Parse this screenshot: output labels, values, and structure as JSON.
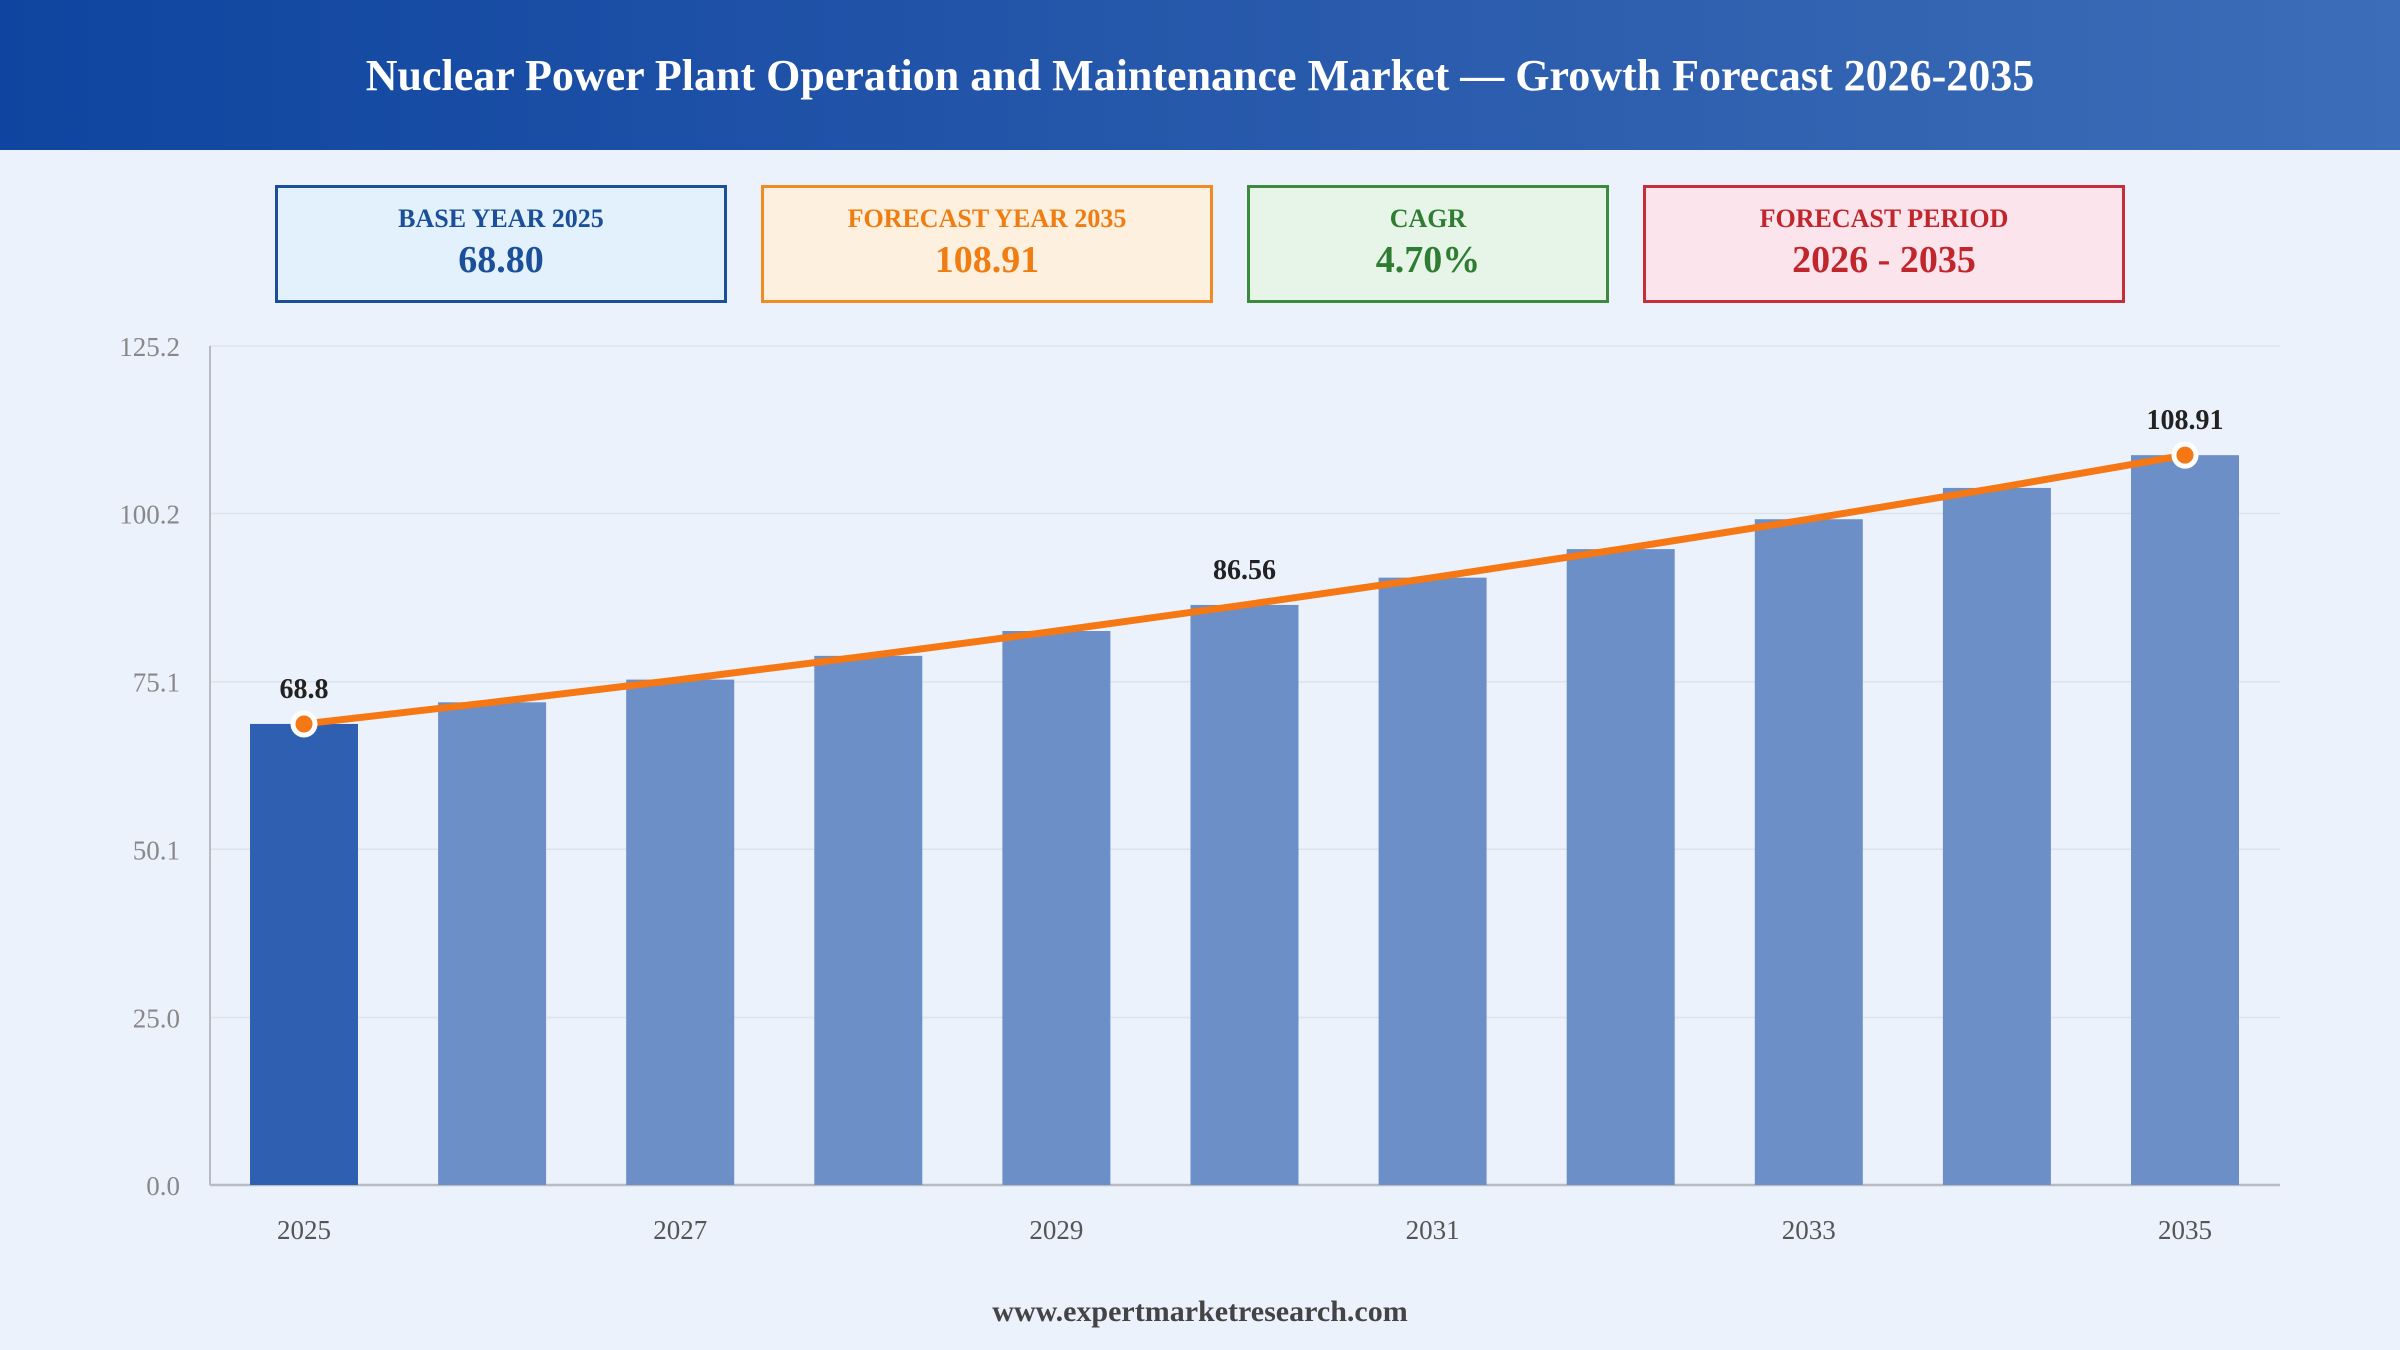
{
  "title": "Nuclear Power Plant Operation and Maintenance Market — Growth Forecast 2026-2035",
  "cards": {
    "base": {
      "label": "BASE YEAR 2025",
      "value": "68.80"
    },
    "forecast": {
      "label": "FORECAST YEAR 2035",
      "value": "108.91"
    },
    "cagr": {
      "label": "CAGR",
      "value": "4.70%"
    },
    "period": {
      "label": "FORECAST PERIOD",
      "value": "2026 - 2035"
    }
  },
  "footer": "www.expertmarketresearch.com",
  "colors": {
    "base_bar": "#2f5fb0",
    "bar": "#6b8fc6",
    "trend_line": "#f57814",
    "marker_fill": "#f57814",
    "marker_stroke": "#ffffff",
    "grid": "#dde3ea",
    "axis": "#b8bcc2",
    "tick_text": "#888888",
    "label_text": "#222222"
  },
  "chart_data": {
    "type": "bar",
    "categories": [
      "2025",
      "2026",
      "2027",
      "2028",
      "2029",
      "2030",
      "2031",
      "2032",
      "2033",
      "2034",
      "2035"
    ],
    "values": [
      68.8,
      72.03,
      75.42,
      78.96,
      82.67,
      86.56,
      90.63,
      94.89,
      99.35,
      104.02,
      108.91
    ],
    "x_tick_labels": [
      "2025",
      "",
      "2027",
      "",
      "2029",
      "",
      "2031",
      "",
      "2033",
      "",
      "2035"
    ],
    "y_ticks": [
      "0.0",
      "25.0",
      "50.1",
      "75.1",
      "100.2",
      "125.2"
    ],
    "ylim": [
      0,
      125.2
    ],
    "data_labels": [
      {
        "index": 0,
        "text": "68.8"
      },
      {
        "index": 5,
        "text": "86.56"
      },
      {
        "index": 10,
        "text": "108.91"
      }
    ],
    "trend_line": true,
    "markers": [
      0,
      10
    ],
    "grid": true,
    "legend": "none"
  }
}
